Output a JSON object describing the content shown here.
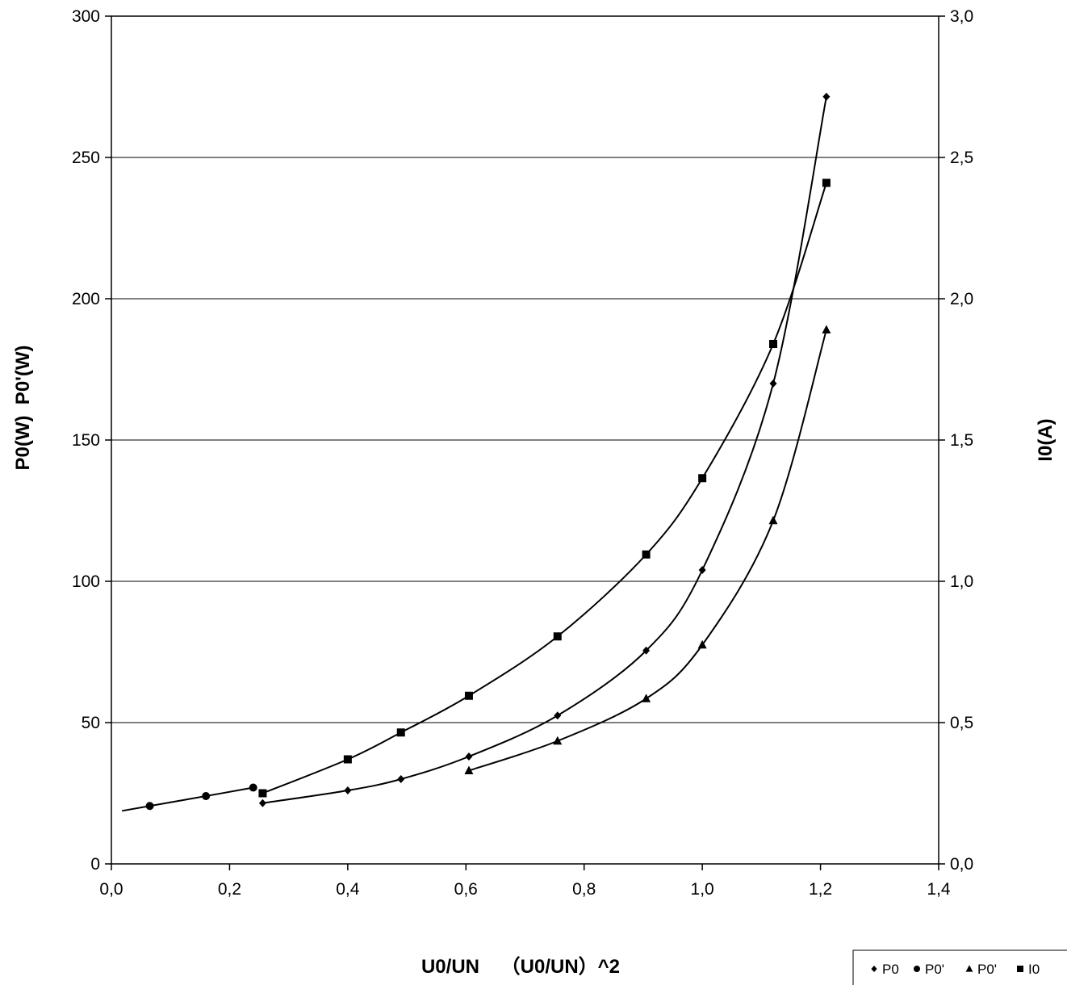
{
  "chart_data": {
    "type": "line",
    "xlabel": "U0/UN    （U0/UN）^2",
    "ylabel_left": "P0(W)  P0'(W)",
    "ylabel_right": "I0(A)",
    "xlim": [
      0,
      1.4
    ],
    "ylim_left": [
      0,
      300
    ],
    "ylim_right": [
      0,
      3.0
    ],
    "x_ticks": [
      "0,0",
      "0,2",
      "0,4",
      "0,6",
      "0,8",
      "1,0",
      "1,2",
      "1,4"
    ],
    "y_left_ticks": [
      "0",
      "50",
      "100",
      "150",
      "200",
      "250",
      "300"
    ],
    "y_right_ticks": [
      "0,0",
      "0,5",
      "1,0",
      "1,5",
      "2,0",
      "2,5",
      "3,0"
    ],
    "grid": "horizontal",
    "legend_position": "bottom-right",
    "series": [
      {
        "name": "P0",
        "marker": "diamond",
        "axis": "left",
        "x": [
          0.256,
          0.4,
          0.49,
          0.605,
          0.755,
          0.905,
          1.0,
          1.12,
          1.21
        ],
        "y": [
          21.5,
          26,
          30,
          38,
          52.5,
          75.5,
          104,
          170,
          271.5
        ]
      },
      {
        "name": "P0'",
        "marker": "circle",
        "axis": "left",
        "x": [
          0.065,
          0.16,
          0.24
        ],
        "y": [
          20.5,
          24,
          27
        ]
      },
      {
        "name": "P0'",
        "marker": "triangle",
        "axis": "left",
        "x": [
          0.605,
          0.755,
          0.905,
          1.0,
          1.12,
          1.21
        ],
        "y": [
          33,
          43.5,
          58.5,
          77.5,
          121.5,
          189
        ]
      },
      {
        "name": "I0",
        "marker": "square",
        "axis": "right",
        "x": [
          0.256,
          0.4,
          0.49,
          0.605,
          0.755,
          0.905,
          1.0,
          1.12,
          1.21
        ],
        "y": [
          0.25,
          0.37,
          0.465,
          0.595,
          0.805,
          1.095,
          1.365,
          1.84,
          2.41
        ]
      }
    ]
  }
}
